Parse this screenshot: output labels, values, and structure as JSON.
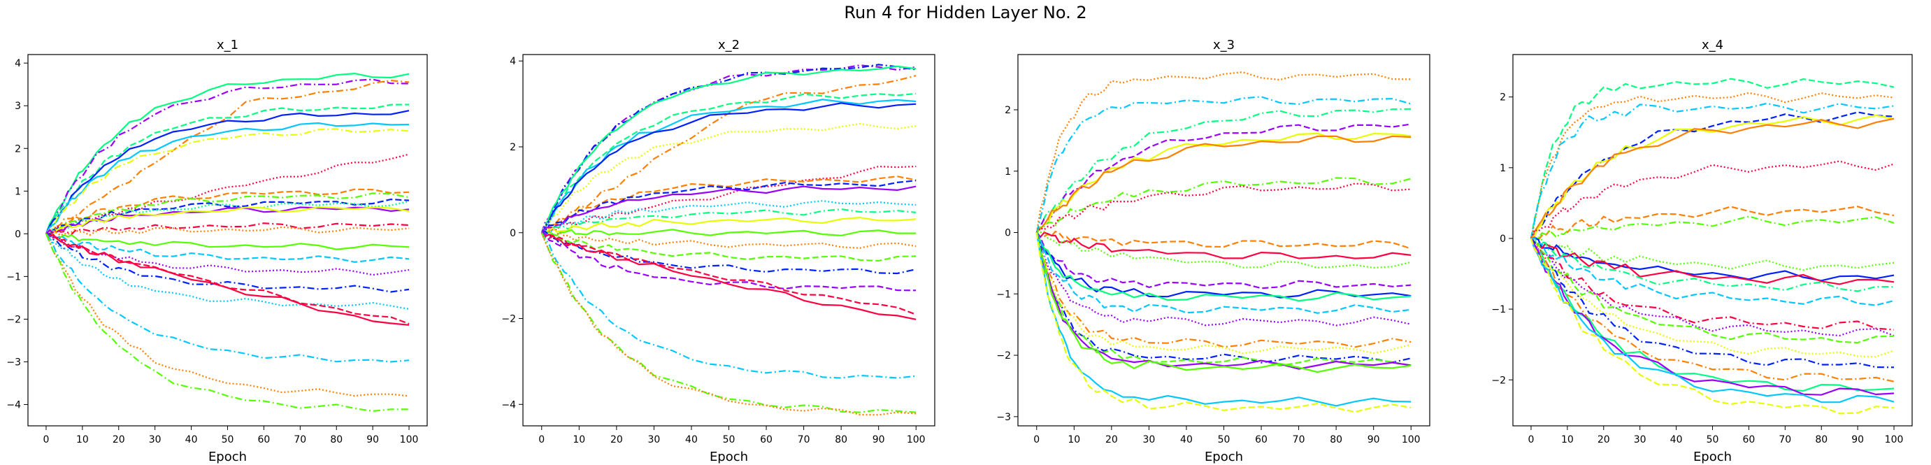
{
  "suptitle": "Run 4 for Hidden Layer No. 2",
  "palette": [
    "#ff0040",
    "#ff7f00",
    "#e6ff00",
    "#55ff00",
    "#00ff80",
    "#00c8ff",
    "#0020ff",
    "#9900ff"
  ],
  "chart_data": [
    {
      "type": "line",
      "title": "x_1",
      "xlabel": "Epoch",
      "ylabel": "",
      "xlim": [
        -5,
        105
      ],
      "ylim": [
        -4.5,
        4.2
      ],
      "xticks": [
        0,
        10,
        20,
        30,
        40,
        50,
        60,
        70,
        80,
        90,
        100
      ],
      "yticks": [
        -4,
        -3,
        -2,
        -1,
        0,
        1,
        2,
        3,
        4
      ],
      "x": [
        0,
        1,
        2,
        3,
        4,
        5,
        6,
        7,
        8,
        9,
        10,
        12,
        14,
        16,
        18,
        20,
        23,
        26,
        30,
        35,
        40,
        45,
        50,
        55,
        60,
        65,
        70,
        75,
        80,
        85,
        90,
        95,
        100
      ],
      "series": [
        {
          "final": 3.75,
          "color": 4,
          "dash": "solid",
          "shape": "log"
        },
        {
          "final": 3.6,
          "color": 7,
          "dash": "dashdot",
          "shape": "log"
        },
        {
          "final": 3.6,
          "color": 1,
          "dash": "dashdot",
          "shape": "late"
        },
        {
          "final": 3.0,
          "color": 4,
          "dash": "dashed",
          "shape": "log"
        },
        {
          "final": 2.85,
          "color": 6,
          "dash": "solid",
          "shape": "log"
        },
        {
          "final": 2.6,
          "color": 5,
          "dash": "solid",
          "shape": "log"
        },
        {
          "final": 2.45,
          "color": 2,
          "dash": "dashdot",
          "shape": "log"
        },
        {
          "final": 1.85,
          "color": 0,
          "dash": "dotted",
          "shape": "lin"
        },
        {
          "final": 1.0,
          "color": 1,
          "dash": "dashed",
          "shape": "log"
        },
        {
          "final": 0.9,
          "color": 3,
          "dash": "dashdot",
          "shape": "log"
        },
        {
          "final": 0.75,
          "color": 6,
          "dash": "dashed",
          "shape": "log"
        },
        {
          "final": 0.7,
          "color": 4,
          "dash": "dotted",
          "shape": "log"
        },
        {
          "final": 0.6,
          "color": 7,
          "dash": "solid",
          "shape": "log"
        },
        {
          "final": 0.6,
          "color": 2,
          "dash": "solid",
          "shape": "log"
        },
        {
          "final": 0.2,
          "color": 0,
          "dash": "dashdot",
          "shape": "log"
        },
        {
          "final": 0.1,
          "color": 1,
          "dash": "dotted",
          "shape": "log"
        },
        {
          "final": -0.3,
          "color": 3,
          "dash": "solid",
          "shape": "log"
        },
        {
          "final": -0.6,
          "color": 5,
          "dash": "dashed",
          "shape": "log"
        },
        {
          "final": -0.9,
          "color": 7,
          "dash": "dotted",
          "shape": "log"
        },
        {
          "final": -1.3,
          "color": 6,
          "dash": "dashdot",
          "shape": "log"
        },
        {
          "final": -1.7,
          "color": 5,
          "dash": "dotted",
          "shape": "log"
        },
        {
          "final": -2.1,
          "color": 0,
          "dash": "dashed",
          "shape": "lin"
        },
        {
          "final": -2.2,
          "color": 0,
          "dash": "solid",
          "shape": "lin"
        },
        {
          "final": -3.0,
          "color": 5,
          "dash": "dashdot",
          "shape": "log"
        },
        {
          "final": -3.8,
          "color": 1,
          "dash": "dotted",
          "shape": "log"
        },
        {
          "final": -4.15,
          "color": 3,
          "dash": "dashdot",
          "shape": "log"
        }
      ]
    },
    {
      "type": "line",
      "title": "x_2",
      "xlabel": "Epoch",
      "ylabel": "",
      "xlim": [
        -5,
        105
      ],
      "ylim": [
        -4.5,
        4.15
      ],
      "xticks": [
        0,
        10,
        20,
        30,
        40,
        50,
        60,
        70,
        80,
        90,
        100
      ],
      "yticks": [
        -4,
        -2,
        0,
        2,
        4
      ],
      "x": [
        0,
        1,
        2,
        3,
        4,
        5,
        6,
        7,
        8,
        9,
        10,
        12,
        14,
        16,
        18,
        20,
        23,
        26,
        30,
        35,
        40,
        45,
        50,
        55,
        60,
        65,
        70,
        75,
        80,
        85,
        90,
        95,
        100
      ],
      "series": [
        {
          "final": 3.9,
          "color": 7,
          "dash": "dashdot",
          "shape": "log"
        },
        {
          "final": 3.9,
          "color": 6,
          "dash": "dashdot",
          "shape": "log"
        },
        {
          "final": 3.85,
          "color": 4,
          "dash": "solid",
          "shape": "log"
        },
        {
          "final": 3.6,
          "color": 1,
          "dash": "dashdot",
          "shape": "late"
        },
        {
          "final": 3.25,
          "color": 4,
          "dash": "dashed",
          "shape": "log"
        },
        {
          "final": 3.1,
          "color": 5,
          "dash": "solid",
          "shape": "log"
        },
        {
          "final": 3.0,
          "color": 6,
          "dash": "solid",
          "shape": "log"
        },
        {
          "final": 2.5,
          "color": 2,
          "dash": "dotted",
          "shape": "log"
        },
        {
          "final": 1.6,
          "color": 0,
          "dash": "dotted",
          "shape": "lin"
        },
        {
          "final": 1.25,
          "color": 1,
          "dash": "dashed",
          "shape": "log"
        },
        {
          "final": 1.15,
          "color": 6,
          "dash": "dashed",
          "shape": "log"
        },
        {
          "final": 1.05,
          "color": 7,
          "dash": "solid",
          "shape": "log"
        },
        {
          "final": 0.7,
          "color": 5,
          "dash": "dotted",
          "shape": "log"
        },
        {
          "final": 0.5,
          "color": 4,
          "dash": "dashdot",
          "shape": "log"
        },
        {
          "final": 0.3,
          "color": 2,
          "dash": "solid",
          "shape": "log"
        },
        {
          "final": 0.0,
          "color": 3,
          "dash": "solid",
          "shape": "log"
        },
        {
          "final": -0.3,
          "color": 1,
          "dash": "dotted",
          "shape": "log"
        },
        {
          "final": -0.6,
          "color": 3,
          "dash": "dashed",
          "shape": "log"
        },
        {
          "final": -0.9,
          "color": 6,
          "dash": "dashdot",
          "shape": "log"
        },
        {
          "final": -1.3,
          "color": 7,
          "dash": "dashed",
          "shape": "log"
        },
        {
          "final": -1.85,
          "color": 0,
          "dash": "dashed",
          "shape": "lin"
        },
        {
          "final": -2.05,
          "color": 0,
          "dash": "solid",
          "shape": "lin"
        },
        {
          "final": -3.4,
          "color": 5,
          "dash": "dashdot",
          "shape": "log"
        },
        {
          "final": -4.2,
          "color": 3,
          "dash": "dashdot",
          "shape": "log"
        },
        {
          "final": -4.25,
          "color": 1,
          "dash": "dotted",
          "shape": "log"
        }
      ]
    },
    {
      "type": "line",
      "title": "x_3",
      "xlabel": "Epoch",
      "ylabel": "",
      "xlim": [
        -5,
        105
      ],
      "ylim": [
        -3.15,
        2.9
      ],
      "xticks": [
        0,
        10,
        20,
        30,
        40,
        50,
        60,
        70,
        80,
        90,
        100
      ],
      "yticks": [
        -3,
        -2,
        -1,
        0,
        1,
        2
      ],
      "x": [
        0,
        1,
        2,
        3,
        4,
        5,
        6,
        7,
        8,
        9,
        10,
        12,
        14,
        16,
        18,
        20,
        23,
        26,
        30,
        35,
        40,
        45,
        50,
        55,
        60,
        65,
        70,
        75,
        80,
        85,
        90,
        95,
        100
      ],
      "series": [
        {
          "final": 2.55,
          "color": 1,
          "dash": "dotted",
          "shape": "fast"
        },
        {
          "final": 2.15,
          "color": 5,
          "dash": "dashdot",
          "shape": "fast"
        },
        {
          "final": 2.0,
          "color": 4,
          "dash": "dashdot",
          "shape": "log"
        },
        {
          "final": 1.75,
          "color": 7,
          "dash": "dashed",
          "shape": "log"
        },
        {
          "final": 1.6,
          "color": 2,
          "dash": "solid",
          "shape": "log"
        },
        {
          "final": 1.55,
          "color": 1,
          "dash": "solid",
          "shape": "log"
        },
        {
          "final": 0.85,
          "color": 3,
          "dash": "dashdot",
          "shape": "log"
        },
        {
          "final": 0.75,
          "color": 0,
          "dash": "dotted",
          "shape": "log"
        },
        {
          "final": -0.2,
          "color": 1,
          "dash": "dashed",
          "shape": "log"
        },
        {
          "final": -0.4,
          "color": 0,
          "dash": "solid",
          "shape": "log"
        },
        {
          "final": -0.55,
          "color": 3,
          "dash": "dotted",
          "shape": "log"
        },
        {
          "final": -0.85,
          "color": 7,
          "dash": "dashed",
          "shape": "fast"
        },
        {
          "final": -1.0,
          "color": 6,
          "dash": "solid",
          "shape": "fast"
        },
        {
          "final": -1.05,
          "color": 4,
          "dash": "solid",
          "shape": "fast"
        },
        {
          "final": -1.25,
          "color": 5,
          "dash": "dashed",
          "shape": "fast"
        },
        {
          "final": -1.45,
          "color": 7,
          "dash": "dotted",
          "shape": "fast"
        },
        {
          "final": -1.8,
          "color": 1,
          "dash": "dashdot",
          "shape": "fast"
        },
        {
          "final": -1.9,
          "color": 2,
          "dash": "dotted",
          "shape": "fast"
        },
        {
          "final": -2.05,
          "color": 6,
          "dash": "dashdot",
          "shape": "fast"
        },
        {
          "final": -2.1,
          "color": 3,
          "dash": "dashed",
          "shape": "fast"
        },
        {
          "final": -2.15,
          "color": 7,
          "dash": "solid",
          "shape": "fast"
        },
        {
          "final": -2.2,
          "color": 3,
          "dash": "solid",
          "shape": "fast"
        },
        {
          "final": -2.75,
          "color": 5,
          "dash": "solid",
          "shape": "fast"
        },
        {
          "final": -2.85,
          "color": 2,
          "dash": "dashed",
          "shape": "fast"
        }
      ]
    },
    {
      "type": "line",
      "title": "x_4",
      "xlabel": "Epoch",
      "ylabel": "",
      "xlim": [
        -5,
        105
      ],
      "ylim": [
        -2.65,
        2.6
      ],
      "xticks": [
        0,
        10,
        20,
        30,
        40,
        50,
        60,
        70,
        80,
        90,
        100
      ],
      "yticks": [
        -2,
        -1,
        0,
        1,
        2
      ],
      "x": [
        0,
        1,
        2,
        3,
        4,
        5,
        6,
        7,
        8,
        9,
        10,
        12,
        14,
        16,
        18,
        20,
        23,
        26,
        30,
        35,
        40,
        45,
        50,
        55,
        60,
        65,
        70,
        75,
        80,
        85,
        90,
        95,
        100
      ],
      "series": [
        {
          "final": 2.2,
          "color": 4,
          "dash": "dashed",
          "shape": "fast"
        },
        {
          "final": 2.0,
          "color": 1,
          "dash": "dotted",
          "shape": "fast"
        },
        {
          "final": 1.85,
          "color": 5,
          "dash": "dashdot",
          "shape": "fast"
        },
        {
          "final": 1.75,
          "color": 6,
          "dash": "dashed",
          "shape": "log"
        },
        {
          "final": 1.7,
          "color": 2,
          "dash": "solid",
          "shape": "log"
        },
        {
          "final": 1.65,
          "color": 1,
          "dash": "solid",
          "shape": "log"
        },
        {
          "final": 1.05,
          "color": 0,
          "dash": "dotted",
          "shape": "log"
        },
        {
          "final": 0.4,
          "color": 1,
          "dash": "dashed",
          "shape": "log"
        },
        {
          "final": 0.25,
          "color": 3,
          "dash": "dashdot",
          "shape": "log"
        },
        {
          "final": -0.4,
          "color": 3,
          "dash": "dotted",
          "shape": "log"
        },
        {
          "final": -0.55,
          "color": 6,
          "dash": "solid",
          "shape": "log"
        },
        {
          "final": -0.6,
          "color": 0,
          "dash": "solid",
          "shape": "log"
        },
        {
          "final": -0.7,
          "color": 4,
          "dash": "dashdot",
          "shape": "log"
        },
        {
          "final": -0.9,
          "color": 5,
          "dash": "dashed",
          "shape": "log"
        },
        {
          "final": -1.25,
          "color": 0,
          "dash": "dashdot",
          "shape": "log"
        },
        {
          "final": -1.35,
          "color": 7,
          "dash": "dotted",
          "shape": "log"
        },
        {
          "final": -1.45,
          "color": 3,
          "dash": "dashed",
          "shape": "log"
        },
        {
          "final": -1.65,
          "color": 2,
          "dash": "dotted",
          "shape": "log"
        },
        {
          "final": -1.8,
          "color": 6,
          "dash": "dashdot",
          "shape": "log"
        },
        {
          "final": -2.0,
          "color": 1,
          "dash": "dashdot",
          "shape": "log"
        },
        {
          "final": -2.15,
          "color": 4,
          "dash": "solid",
          "shape": "log"
        },
        {
          "final": -2.2,
          "color": 7,
          "dash": "solid",
          "shape": "log"
        },
        {
          "final": -2.3,
          "color": 5,
          "dash": "solid",
          "shape": "log"
        },
        {
          "final": -2.45,
          "color": 2,
          "dash": "dashed",
          "shape": "log"
        }
      ]
    }
  ]
}
